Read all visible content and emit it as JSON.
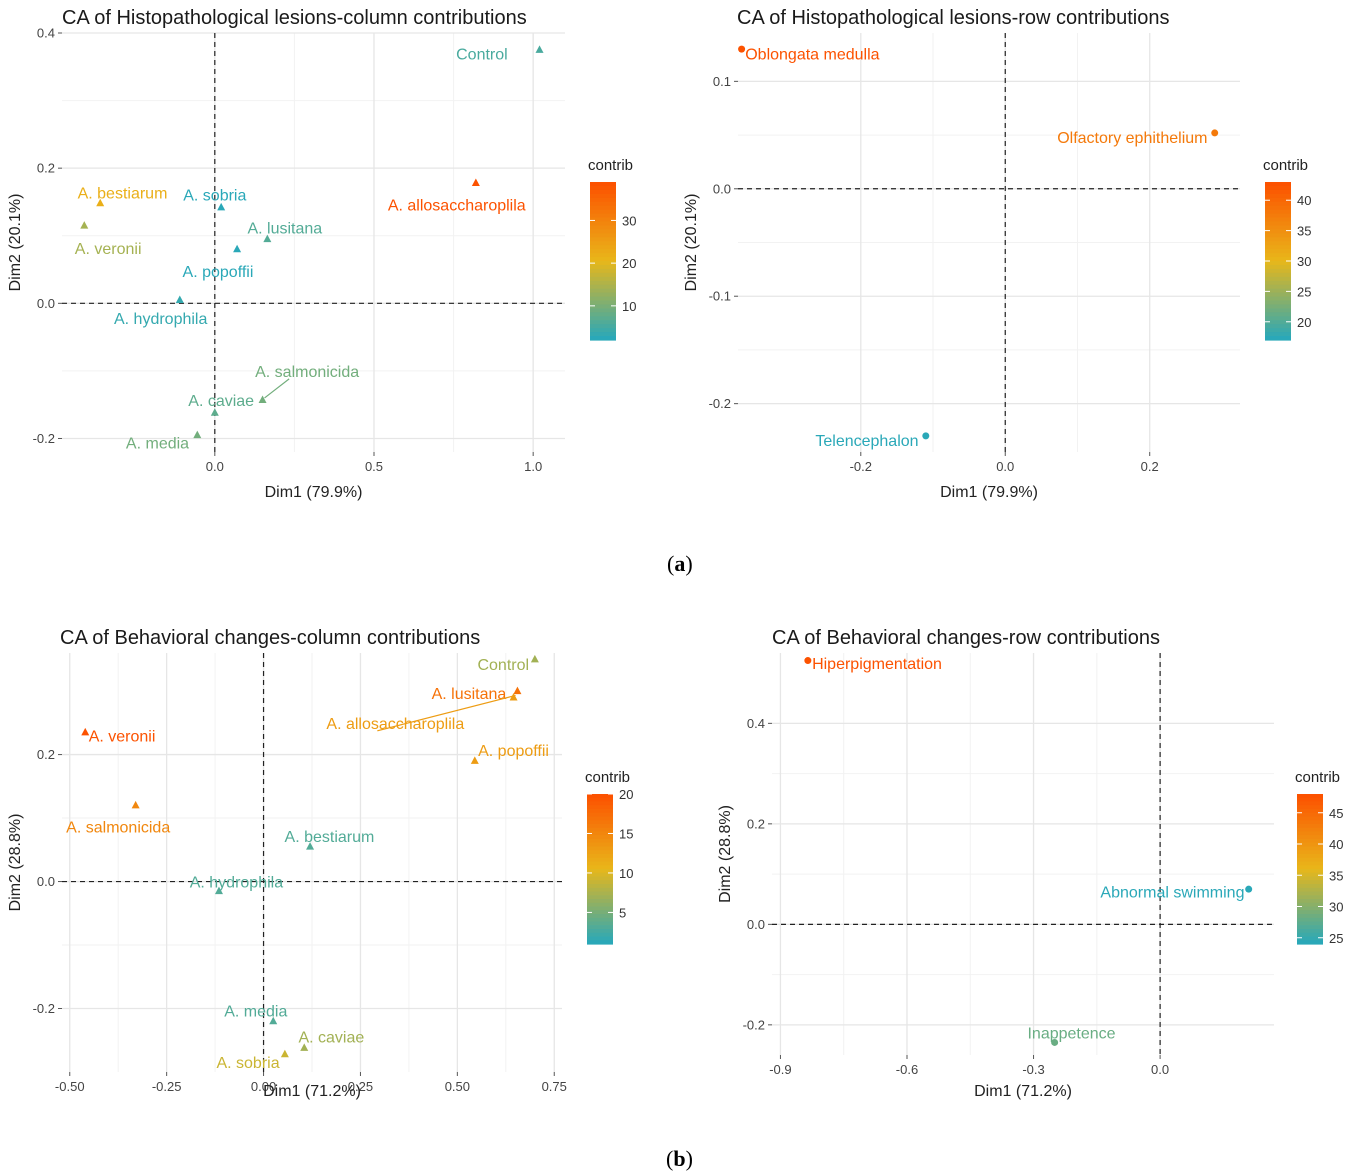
{
  "figure": {
    "label_a_open": "(",
    "label_a": "a",
    "label_a_close": ")",
    "label_b_open": "(",
    "label_b": "b",
    "label_b_close": ")"
  },
  "chart_data": [
    {
      "type": "scatter",
      "title": "CA of Histopathological lesions-column contributions",
      "xlabel": "Dim1 (79.9%)",
      "ylabel": "Dim2 (20.1%)",
      "xlim": [
        -0.48,
        1.1
      ],
      "ylim": [
        -0.22,
        0.4
      ],
      "xticks": [
        0.0,
        0.5,
        1.0
      ],
      "xtick_labels": [
        "0.0",
        "0.5",
        "1.0"
      ],
      "yticks": [
        -0.2,
        0.0,
        0.2,
        0.4
      ],
      "ytick_labels": [
        "-0.2",
        "0.0",
        "0.2",
        "0.4"
      ],
      "marker": "triangle",
      "legend": {
        "title": "contrib",
        "min": 2,
        "max": 39,
        "ticks": [
          10,
          20,
          30
        ],
        "placement": "right"
      },
      "colors": {
        "low": "#2aa8b8",
        "mid": "#e8b71a",
        "high": "#fc5200"
      },
      "points": [
        {
          "label": "Control",
          "x": 1.02,
          "y": 0.375,
          "contrib": 5,
          "lx": 0.92,
          "ly": 0.37,
          "anchor": "end"
        },
        {
          "label": "A. allosaccharoplila",
          "x": 0.82,
          "y": 0.178,
          "contrib": 39,
          "lx": 0.76,
          "ly": 0.146,
          "anchor": "middle"
        },
        {
          "label": "A. bestiarum",
          "x": -0.36,
          "y": 0.148,
          "contrib": 22,
          "lx": -0.29,
          "ly": 0.164,
          "anchor": "middle"
        },
        {
          "label": "A. veronii",
          "x": -0.41,
          "y": 0.115,
          "contrib": 14,
          "lx": -0.335,
          "ly": 0.082,
          "anchor": "middle"
        },
        {
          "label": "A. sobria",
          "x": 0.02,
          "y": 0.142,
          "contrib": 2,
          "lx": 0.0,
          "ly": 0.161,
          "anchor": "middle"
        },
        {
          "label": "A. lusitana",
          "x": 0.165,
          "y": 0.095,
          "contrib": 6,
          "lx": 0.22,
          "ly": 0.112,
          "anchor": "middle"
        },
        {
          "label": "A. popoffii",
          "x": 0.07,
          "y": 0.08,
          "contrib": 2,
          "lx": 0.01,
          "ly": 0.048,
          "anchor": "middle"
        },
        {
          "label": "A. hydrophila",
          "x": -0.11,
          "y": 0.005,
          "contrib": 3,
          "lx": -0.17,
          "ly": -0.022,
          "anchor": "middle"
        },
        {
          "label": "A. salmonicida",
          "x": 0.15,
          "y": -0.143,
          "contrib": 9,
          "lx": 0.29,
          "ly": -0.1,
          "anchor": "middle",
          "arrow": true
        },
        {
          "label": "A. caviae",
          "x": 0.0,
          "y": -0.162,
          "contrib": 7,
          "lx": 0.02,
          "ly": -0.143,
          "anchor": "middle"
        },
        {
          "label": "A. media",
          "x": -0.055,
          "y": -0.195,
          "contrib": 9,
          "lx": -0.18,
          "ly": -0.206,
          "anchor": "middle"
        }
      ]
    },
    {
      "type": "scatter",
      "title": "CA of Histopathological lesions-row contributions",
      "xlabel": "Dim1 (79.9%)",
      "ylabel": "Dim2 (20.1%)",
      "xlim": [
        -0.37,
        0.325
      ],
      "ylim": [
        -0.245,
        0.145
      ],
      "xticks": [
        -0.2,
        0.0,
        0.2
      ],
      "xtick_labels": [
        "-0.2",
        "0.0",
        "0.2"
      ],
      "yticks": [
        -0.2,
        -0.1,
        0.0,
        0.1
      ],
      "ytick_labels": [
        "-0.2",
        "-0.1",
        "0.0",
        "0.1"
      ],
      "marker": "circle",
      "legend": {
        "title": "contrib",
        "min": 17,
        "max": 43,
        "ticks": [
          20,
          25,
          30,
          35,
          40
        ],
        "placement": "right"
      },
      "colors": {
        "low": "#2aa8b8",
        "mid": "#e8b71a",
        "high": "#fc5200"
      },
      "points": [
        {
          "label": "Oblongata medulla",
          "x": -0.365,
          "y": 0.13,
          "contrib": 43,
          "lx": -0.36,
          "ly": 0.126,
          "anchor": "start"
        },
        {
          "label": "Olfactory ephithelium",
          "x": 0.29,
          "y": 0.052,
          "contrib": 38,
          "lx": 0.28,
          "ly": 0.048,
          "anchor": "end"
        },
        {
          "label": "Telencephalon",
          "x": -0.11,
          "y": -0.23,
          "contrib": 17,
          "lx": -0.12,
          "ly": -0.234,
          "anchor": "end"
        }
      ]
    },
    {
      "type": "scatter",
      "title": "CA of Behavioral changes-column contributions",
      "xlabel": "Dim1 (71.2%)",
      "ylabel": "Dim2 (28.8%)",
      "xlim": [
        -0.52,
        0.77
      ],
      "ylim": [
        -0.3,
        0.36
      ],
      "xticks": [
        -0.5,
        -0.25,
        0.0,
        0.25,
        0.5,
        0.75
      ],
      "xtick_labels": [
        "-0.50",
        "-0.25",
        "0.00",
        "0.25",
        "0.50",
        "0.75"
      ],
      "yticks": [
        -0.2,
        0.0,
        0.2
      ],
      "ytick_labels": [
        "-0.2",
        "0.0",
        "0.2"
      ],
      "marker": "triangle",
      "legend": {
        "title": "contrib",
        "min": 1,
        "max": 20,
        "ticks": [
          5,
          10,
          15,
          20
        ],
        "placement": "right"
      },
      "colors": {
        "low": "#2aa8b8",
        "mid": "#e8b71a",
        "high": "#fc5200"
      },
      "points": [
        {
          "label": "Control",
          "x": 0.7,
          "y": 0.35,
          "contrib": 7,
          "lx": 0.685,
          "ly": 0.343,
          "anchor": "end"
        },
        {
          "label": "A. lusitana",
          "x": 0.655,
          "y": 0.3,
          "contrib": 17,
          "lx": 0.53,
          "ly": 0.297,
          "anchor": "middle"
        },
        {
          "label": "A. allosaccharoplila",
          "x": 0.645,
          "y": 0.29,
          "contrib": 13,
          "lx": 0.34,
          "ly": 0.25,
          "anchor": "middle",
          "arrow": true
        },
        {
          "label": "A. popoffii",
          "x": 0.545,
          "y": 0.19,
          "contrib": 13,
          "lx": 0.645,
          "ly": 0.207,
          "anchor": "middle"
        },
        {
          "label": "A. veronii",
          "x": -0.46,
          "y": 0.235,
          "contrib": 20,
          "lx": -0.365,
          "ly": 0.23,
          "anchor": "middle"
        },
        {
          "label": "A. salmonicida",
          "x": -0.33,
          "y": 0.12,
          "contrib": 15,
          "lx": -0.375,
          "ly": 0.087,
          "anchor": "middle"
        },
        {
          "label": "A. bestiarum",
          "x": 0.12,
          "y": 0.055,
          "contrib": 3,
          "lx": 0.17,
          "ly": 0.072,
          "anchor": "middle"
        },
        {
          "label": "A. hydrophila",
          "x": -0.115,
          "y": -0.015,
          "contrib": 3,
          "lx": -0.07,
          "ly": 0.0,
          "anchor": "middle"
        },
        {
          "label": "A. media",
          "x": 0.025,
          "y": -0.22,
          "contrib": 3,
          "lx": -0.02,
          "ly": -0.203,
          "anchor": "middle"
        },
        {
          "label": "A. caviae",
          "x": 0.105,
          "y": -0.262,
          "contrib": 7,
          "lx": 0.175,
          "ly": -0.244,
          "anchor": "middle"
        },
        {
          "label": "A. sobria",
          "x": 0.055,
          "y": -0.272,
          "contrib": 9,
          "lx": -0.04,
          "ly": -0.284,
          "anchor": "middle"
        }
      ]
    },
    {
      "type": "scatter",
      "title": "CA of Behavioral changes-row contributions",
      "xlabel": "Dim1 (71.2%)",
      "ylabel": "Dim2 (28.8%)",
      "xlim": [
        -0.92,
        0.27
      ],
      "ylim": [
        -0.26,
        0.54
      ],
      "xticks": [
        -0.9,
        -0.6,
        -0.3,
        0.0
      ],
      "xtick_labels": [
        "-0.9",
        "-0.6",
        "-0.3",
        "0.0"
      ],
      "yticks": [
        -0.2,
        0.0,
        0.2,
        0.4
      ],
      "ytick_labels": [
        "-0.2",
        "0.0",
        "0.2",
        "0.4"
      ],
      "marker": "circle",
      "legend": {
        "title": "contrib",
        "min": 24,
        "max": 48,
        "ticks": [
          25,
          30,
          35,
          40,
          45
        ],
        "placement": "right"
      },
      "colors": {
        "low": "#2aa8b8",
        "mid": "#e8b71a",
        "high": "#fc5200"
      },
      "points": [
        {
          "label": "Hiperpigmentation",
          "x": -0.835,
          "y": 0.525,
          "contrib": 48,
          "lx": -0.825,
          "ly": 0.52,
          "anchor": "start"
        },
        {
          "label": "Abnormal swimming",
          "x": 0.21,
          "y": 0.07,
          "contrib": 24,
          "lx": 0.2,
          "ly": 0.065,
          "anchor": "end"
        },
        {
          "label": "Inappetence",
          "x": -0.25,
          "y": -0.235,
          "contrib": 28,
          "lx": -0.21,
          "ly": -0.215,
          "anchor": "middle"
        }
      ]
    }
  ]
}
